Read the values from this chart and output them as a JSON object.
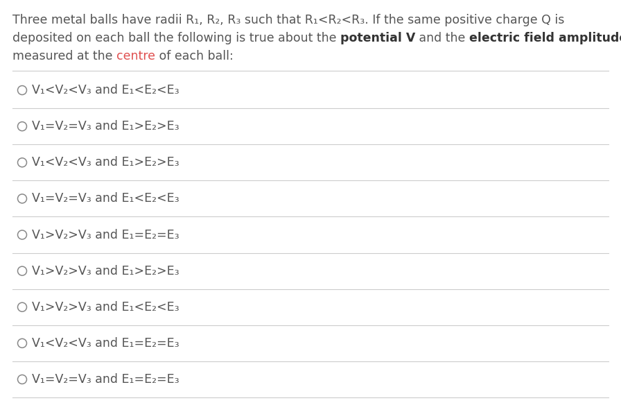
{
  "background_color": "#ffffff",
  "fig_width": 8.96,
  "fig_height": 5.81,
  "dpi": 100,
  "text_color": "#555555",
  "bold_color": "#333333",
  "red_color": "#e05050",
  "line_color": "#cccccc",
  "circle_color": "#888888",
  "header_font_size": 12.5,
  "option_font_size": 12.5,
  "options": [
    "V₁<V₂<V₃ and E₁<E₂<E₃",
    "V₁=V₂=V₃ and E₁>E₂>E₃",
    "V₁<V₂<V₃ and E₁>E₂>E₃",
    "V₁=V₂=V₃ and E₁<E₂<E₃",
    "V₁>V₂>V₃ and E₁=E₂=E₃",
    "V₁>V₂>V₃ and E₁>E₂>E₃",
    "V₁>V₂>V₃ and E₁<E₂<E₃",
    "V₁<V₂<V₃ and E₁=E₂=E₃",
    "V₁=V₂=V₃ and E₁=E₂=E₃"
  ],
  "line1": "Three metal balls have radii R₁, R₂, R₃ such that R₁<R₂<R₃. If the same positive charge Q is",
  "line2_before_bold1": "deposited on each ball the following is true about the ",
  "line2_bold1": "potential V",
  "line2_between": " and the ",
  "line2_bold2": "electric field amplitude E",
  "line3_before_red": "measured at the ",
  "line3_red": "centre",
  "line3_after_red": " of each ball:"
}
